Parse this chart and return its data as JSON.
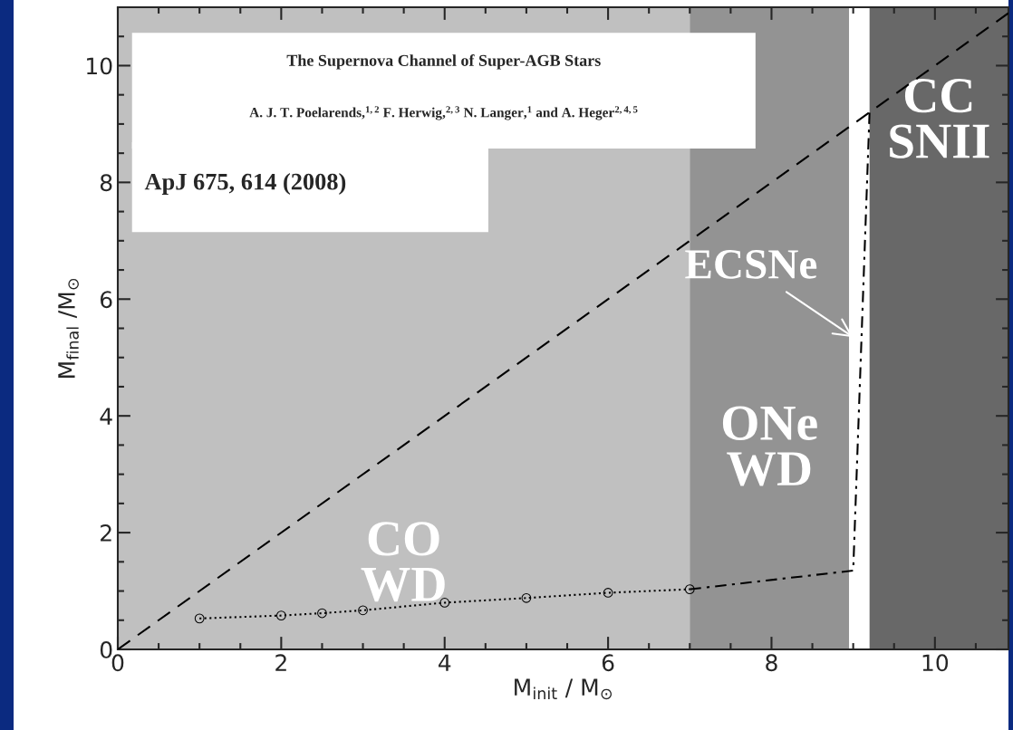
{
  "chart_data": {
    "type": "line",
    "xlabel": "M$_{init}$ / M$_{⊙}$",
    "ylabel": "M$_{final}$ /M$_{⊙}$",
    "xlim": [
      0,
      10.9
    ],
    "ylim": [
      0,
      11
    ],
    "xticks": [
      0,
      {
        "value": 0.5,
        "label": null
      },
      {
        "value": 1,
        "label": null
      },
      {
        "value": 1.5,
        "label": null
      },
      2,
      {
        "value": 2.5,
        "label": null
      },
      {
        "value": 3,
        "label": null
      },
      {
        "value": 3.5,
        "label": null
      },
      4,
      {
        "value": 4.5,
        "label": null
      },
      {
        "value": 5,
        "label": null
      },
      {
        "value": 5.5,
        "label": null
      },
      6,
      {
        "value": 6.5,
        "label": null
      },
      {
        "value": 7,
        "label": null
      },
      {
        "value": 7.5,
        "label": null
      },
      8,
      {
        "value": 8.5,
        "label": null
      },
      {
        "value": 9,
        "label": null
      },
      {
        "value": 9.5,
        "label": null
      },
      10,
      {
        "value": 10.5,
        "label": null
      }
    ],
    "yticks": [
      0,
      {
        "value": 0.5,
        "label": null
      },
      {
        "value": 1,
        "label": null
      },
      {
        "value": 1.5,
        "label": null
      },
      2,
      {
        "value": 2.5,
        "label": null
      },
      {
        "value": 3,
        "label": null
      },
      {
        "value": 3.5,
        "label": null
      },
      4,
      {
        "value": 4.5,
        "label": null
      },
      {
        "value": 5,
        "label": null
      },
      {
        "value": 5.5,
        "label": null
      },
      6,
      {
        "value": 6.5,
        "label": null
      },
      {
        "value": 7,
        "label": null
      },
      {
        "value": 7.5,
        "label": null
      },
      8,
      {
        "value": 8.5,
        "label": null
      },
      {
        "value": 9,
        "label": null
      },
      {
        "value": 9.5,
        "label": null
      },
      10,
      {
        "value": 10.5,
        "label": null
      }
    ],
    "grid": false,
    "legend": false,
    "series": [
      {
        "color": "#000000",
        "line_style": "dashed",
        "marker": "none",
        "x": [
          0,
          10.9
        ],
        "values": [
          0,
          10.9
        ]
      },
      {
        "color": "#000000",
        "line_style": "dotted",
        "marker": "circle",
        "x": [
          1,
          2,
          2.5,
          3,
          4,
          5,
          6,
          7
        ],
        "values": [
          0.53,
          0.58,
          0.62,
          0.67,
          0.8,
          0.88,
          0.97,
          1.03
        ]
      },
      {
        "color": "#000000",
        "line_style": "dashdot",
        "marker": "none",
        "x": [
          7,
          9,
          9.2
        ],
        "values": [
          1.03,
          1.35,
          9.2
        ]
      }
    ],
    "bands": [
      {
        "axis": "x",
        "from": 0,
        "to": 7,
        "label": "CO\nWD",
        "color": "#c0c0c0"
      },
      {
        "axis": "x",
        "from": 7,
        "to": 8.95,
        "label": "ONe\nWD",
        "color": "#939393"
      },
      {
        "axis": "x",
        "from": 8.95,
        "to": 9.2,
        "color": "#ffffff"
      },
      {
        "axis": "x",
        "from": 9.2,
        "to": 10.9,
        "label": "CC\nSNII",
        "color": "#686868"
      }
    ],
    "annotations": [
      "The Supernova Channel of Super-AGB Stars",
      "A. J. T. Poelarends,$^{1,2}$ F. Herwig,$^{2,3}$ N. Langer,$^{1}$ and A. Heger$^{2,4,5}$",
      "ApJ 675, 614 (2008)",
      {
        "text": "ECSNe",
        "x": 9.05,
        "y": 5.3
      }
    ]
  }
}
